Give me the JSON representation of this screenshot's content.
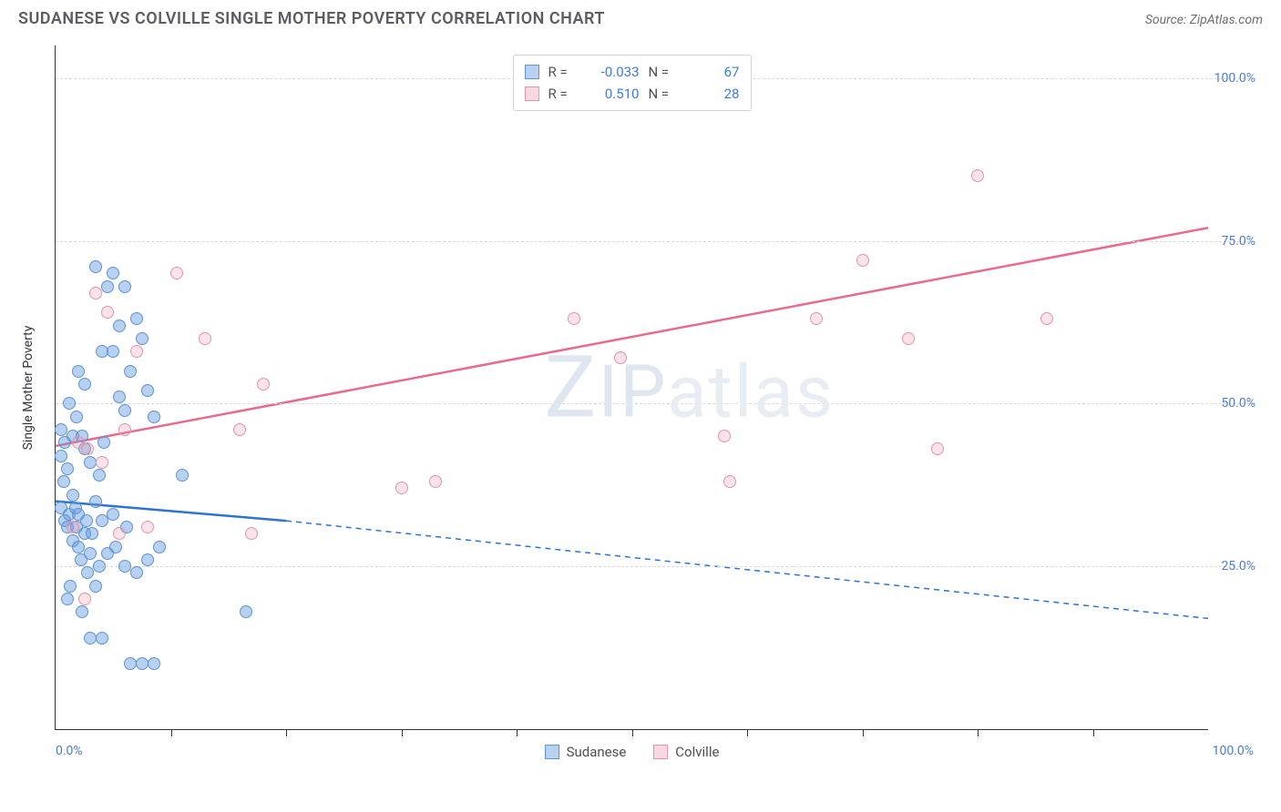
{
  "header": {
    "title": "SUDANESE VS COLVILLE SINGLE MOTHER POVERTY CORRELATION CHART",
    "source": "Source: ZipAtlas.com"
  },
  "axes": {
    "y_title": "Single Mother Poverty",
    "x_min_label": "0.0%",
    "x_max_label": "100.0%",
    "y_ticks": [
      {
        "v": 25,
        "label": "25.0%"
      },
      {
        "v": 50,
        "label": "50.0%"
      },
      {
        "v": 75,
        "label": "75.0%"
      },
      {
        "v": 100,
        "label": "100.0%"
      }
    ],
    "x_ticks_minor": [
      10,
      20,
      30,
      40,
      50,
      60,
      70,
      80,
      90
    ],
    "xlim": [
      0,
      100
    ],
    "ylim": [
      0,
      105
    ],
    "grid_color": "#d9dbe0",
    "background": "#ffffff"
  },
  "watermark": "ZIPatlas",
  "series": [
    {
      "name": "Sudanese",
      "fill": "rgba(99,154,222,0.45)",
      "stroke": "#5b93d6",
      "legend_swatch_fill": "#b9d1ef",
      "legend_swatch_stroke": "#5b93d6",
      "stats": {
        "R_label": "R =",
        "R": "-0.033",
        "N_label": "N =",
        "N": "67"
      },
      "trend": {
        "x1": 0,
        "y1": 35,
        "x_solid_end": 20,
        "y_solid_end": 32,
        "x2": 100,
        "y2": 17,
        "color": "#2d73d2",
        "width": 2.5,
        "dash": "6,5"
      },
      "points": [
        {
          "x": 0.5,
          "y": 34
        },
        {
          "x": 0.5,
          "y": 42
        },
        {
          "x": 0.5,
          "y": 46
        },
        {
          "x": 0.7,
          "y": 38
        },
        {
          "x": 0.8,
          "y": 32
        },
        {
          "x": 0.8,
          "y": 44
        },
        {
          "x": 1.0,
          "y": 31
        },
        {
          "x": 1.0,
          "y": 40
        },
        {
          "x": 1.2,
          "y": 50
        },
        {
          "x": 1.2,
          "y": 33
        },
        {
          "x": 1.5,
          "y": 29
        },
        {
          "x": 1.5,
          "y": 36
        },
        {
          "x": 1.5,
          "y": 45
        },
        {
          "x": 1.8,
          "y": 31
        },
        {
          "x": 1.8,
          "y": 48
        },
        {
          "x": 2.0,
          "y": 33
        },
        {
          "x": 2.0,
          "y": 55
        },
        {
          "x": 2.2,
          "y": 26
        },
        {
          "x": 2.5,
          "y": 30
        },
        {
          "x": 2.5,
          "y": 43
        },
        {
          "x": 2.5,
          "y": 53
        },
        {
          "x": 2.8,
          "y": 24
        },
        {
          "x": 3.0,
          "y": 27
        },
        {
          "x": 3.0,
          "y": 41
        },
        {
          "x": 3.5,
          "y": 22
        },
        {
          "x": 3.5,
          "y": 35
        },
        {
          "x": 3.5,
          "y": 71
        },
        {
          "x": 3.8,
          "y": 25
        },
        {
          "x": 4.0,
          "y": 14
        },
        {
          "x": 4.0,
          "y": 32
        },
        {
          "x": 4.0,
          "y": 58
        },
        {
          "x": 4.5,
          "y": 68
        },
        {
          "x": 4.5,
          "y": 27
        },
        {
          "x": 5.0,
          "y": 70
        },
        {
          "x": 5.0,
          "y": 58
        },
        {
          "x": 5.0,
          "y": 33
        },
        {
          "x": 5.5,
          "y": 62
        },
        {
          "x": 5.5,
          "y": 51
        },
        {
          "x": 6.0,
          "y": 49
        },
        {
          "x": 6.0,
          "y": 68
        },
        {
          "x": 6.0,
          "y": 25
        },
        {
          "x": 6.5,
          "y": 10
        },
        {
          "x": 6.5,
          "y": 55
        },
        {
          "x": 7.0,
          "y": 63
        },
        {
          "x": 7.0,
          "y": 24
        },
        {
          "x": 7.5,
          "y": 60
        },
        {
          "x": 7.5,
          "y": 10
        },
        {
          "x": 8.0,
          "y": 52
        },
        {
          "x": 8.0,
          "y": 26
        },
        {
          "x": 8.5,
          "y": 48
        },
        {
          "x": 8.5,
          "y": 10
        },
        {
          "x": 1.0,
          "y": 20
        },
        {
          "x": 1.3,
          "y": 22
        },
        {
          "x": 1.7,
          "y": 34
        },
        {
          "x": 2.0,
          "y": 28
        },
        {
          "x": 2.3,
          "y": 18
        },
        {
          "x": 2.3,
          "y": 45
        },
        {
          "x": 2.7,
          "y": 32
        },
        {
          "x": 3.2,
          "y": 30
        },
        {
          "x": 3.8,
          "y": 39
        },
        {
          "x": 4.2,
          "y": 44
        },
        {
          "x": 5.2,
          "y": 28
        },
        {
          "x": 6.2,
          "y": 31
        },
        {
          "x": 9.0,
          "y": 28
        },
        {
          "x": 11.0,
          "y": 39
        },
        {
          "x": 16.5,
          "y": 18
        },
        {
          "x": 3.0,
          "y": 14
        }
      ]
    },
    {
      "name": "Colville",
      "fill": "rgba(236,149,169,0.25)",
      "stroke": "#e594a8",
      "legend_swatch_fill": "#f7dae1",
      "legend_swatch_stroke": "#e594a8",
      "stats": {
        "R_label": "R =",
        "R": "0.510",
        "N_label": "N =",
        "N": "28"
      },
      "trend": {
        "x1": 0,
        "y1": 43.5,
        "x_solid_end": 100,
        "y_solid_end": 77,
        "x2": 100,
        "y2": 77,
        "color": "#e86b8b",
        "width": 2.5,
        "dash": ""
      },
      "points": [
        {
          "x": 1.5,
          "y": 31
        },
        {
          "x": 2.0,
          "y": 44
        },
        {
          "x": 2.5,
          "y": 20
        },
        {
          "x": 2.8,
          "y": 43
        },
        {
          "x": 3.5,
          "y": 67
        },
        {
          "x": 4.0,
          "y": 41
        },
        {
          "x": 4.5,
          "y": 64
        },
        {
          "x": 5.5,
          "y": 30
        },
        {
          "x": 6.0,
          "y": 46
        },
        {
          "x": 7.0,
          "y": 58
        },
        {
          "x": 8.0,
          "y": 31
        },
        {
          "x": 10.5,
          "y": 70
        },
        {
          "x": 13.0,
          "y": 60
        },
        {
          "x": 16.0,
          "y": 46
        },
        {
          "x": 17.0,
          "y": 30
        },
        {
          "x": 18.0,
          "y": 53
        },
        {
          "x": 30.0,
          "y": 37
        },
        {
          "x": 33.0,
          "y": 38
        },
        {
          "x": 45.0,
          "y": 63
        },
        {
          "x": 49.0,
          "y": 57
        },
        {
          "x": 58.0,
          "y": 45
        },
        {
          "x": 58.5,
          "y": 38
        },
        {
          "x": 66.0,
          "y": 63
        },
        {
          "x": 70.0,
          "y": 72
        },
        {
          "x": 74.0,
          "y": 60
        },
        {
          "x": 76.5,
          "y": 43
        },
        {
          "x": 80.0,
          "y": 85
        },
        {
          "x": 86.0,
          "y": 63
        }
      ]
    }
  ],
  "bottom_legend": [
    {
      "label": "Sudanese",
      "fill": "#b9d1ef",
      "stroke": "#5b93d6"
    },
    {
      "label": "Colville",
      "fill": "#f7dae1",
      "stroke": "#e594a8"
    }
  ]
}
